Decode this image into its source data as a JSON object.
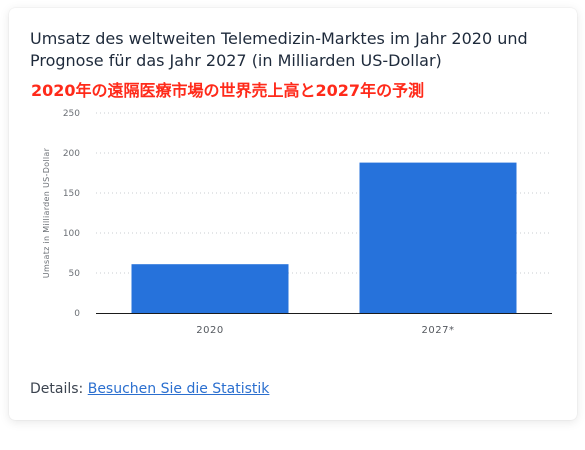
{
  "title": "Umsatz des weltweiten Telemedizin-Marktes im Jahr 2020 und Prognose für das Jahr 2027 (in Milliarden US-Dollar)",
  "annotation": "2020年の遠隔医療市場の世界売上高と2027年の予測",
  "details": {
    "label": "Details:",
    "link_text": "Besuchen Sie die Statistik"
  },
  "colors": {
    "bar": "#2672db",
    "annotation": "#ff2a1a"
  },
  "chart_data": {
    "type": "bar",
    "categories": [
      "2020",
      "2027*"
    ],
    "values": [
      61,
      188
    ],
    "title": "Umsatz des weltweiten Telemedizin-Marktes im Jahr 2020 und Prognose für das Jahr 2027 (in Milliarden US-Dollar)",
    "xlabel": "",
    "ylabel": "Umsatz in Milliarden US-Dollar",
    "ylim": [
      0,
      250
    ],
    "yticks": [
      0,
      50,
      100,
      150,
      200,
      250
    ],
    "grid": true
  }
}
